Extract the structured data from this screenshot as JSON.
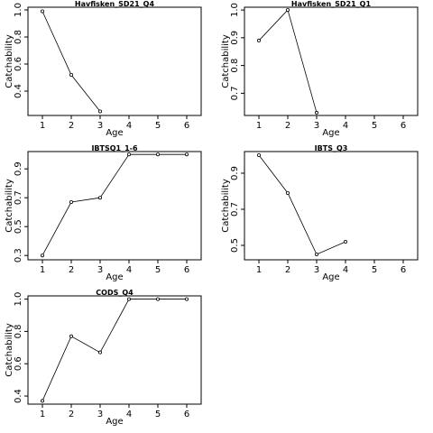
{
  "chart_data": [
    {
      "type": "line",
      "title": "Havfisken_SD21_Q4",
      "xlabel": "Age",
      "ylabel": "Catchability",
      "xlim": [
        0.5,
        6.5
      ],
      "ylim": [
        0.22,
        1.02
      ],
      "xticks": [
        1,
        2,
        3,
        4,
        5,
        6
      ],
      "yticks": [
        "0.4",
        "0.6",
        "0.8",
        "1.0"
      ],
      "series": [
        {
          "x": [
            1,
            2,
            3
          ],
          "y": [
            0.99,
            0.52,
            0.25
          ]
        }
      ]
    },
    {
      "type": "line",
      "title": "Havfisken_SD21_Q1",
      "xlabel": "Age",
      "ylabel": "Catchability",
      "xlim": [
        0.5,
        6.5
      ],
      "ylim": [
        0.62,
        1.01
      ],
      "xticks": [
        1,
        2,
        3,
        4,
        5,
        6
      ],
      "yticks": [
        "0.7",
        "0.8",
        "0.9",
        "1.0"
      ],
      "series": [
        {
          "x": [
            1,
            2,
            3
          ],
          "y": [
            0.89,
            1.0,
            0.63
          ]
        }
      ]
    },
    {
      "type": "line",
      "title": "IBTSQ1_1-6",
      "xlabel": "Age",
      "ylabel": "Catchability",
      "xlim": [
        0.5,
        6.5
      ],
      "ylim": [
        0.27,
        1.02
      ],
      "xticks": [
        1,
        2,
        3,
        4,
        5,
        6
      ],
      "yticks": [
        "0.3",
        "0.5",
        "0.7",
        "0.9"
      ],
      "series": [
        {
          "x": [
            1,
            2,
            3,
            4,
            5,
            6
          ],
          "y": [
            0.3,
            0.67,
            0.7,
            1.0,
            1.0,
            1.0
          ]
        }
      ]
    },
    {
      "type": "line",
      "title": "IBTS_Q3",
      "xlabel": "Age",
      "ylabel": "Catchability",
      "xlim": [
        0.5,
        6.5
      ],
      "ylim": [
        0.42,
        1.02
      ],
      "xticks": [
        1,
        2,
        3,
        4,
        5,
        6
      ],
      "yticks": [
        "0.5",
        "0.7",
        "0.9"
      ],
      "series": [
        {
          "x": [
            1,
            2,
            3,
            4
          ],
          "y": [
            1.0,
            0.79,
            0.45,
            0.52
          ]
        }
      ]
    },
    {
      "type": "line",
      "title": "CODS_Q4",
      "xlabel": "Age",
      "ylabel": "Catchability",
      "xlim": [
        0.5,
        6.5
      ],
      "ylim": [
        0.35,
        1.02
      ],
      "xticks": [
        1,
        2,
        3,
        4,
        5,
        6
      ],
      "yticks": [
        "0.4",
        "0.6",
        "0.8",
        "1.0"
      ],
      "series": [
        {
          "x": [
            1,
            2,
            3,
            4,
            5,
            6
          ],
          "y": [
            0.37,
            0.77,
            0.67,
            1.0,
            1.0,
            1.0
          ]
        }
      ]
    }
  ]
}
